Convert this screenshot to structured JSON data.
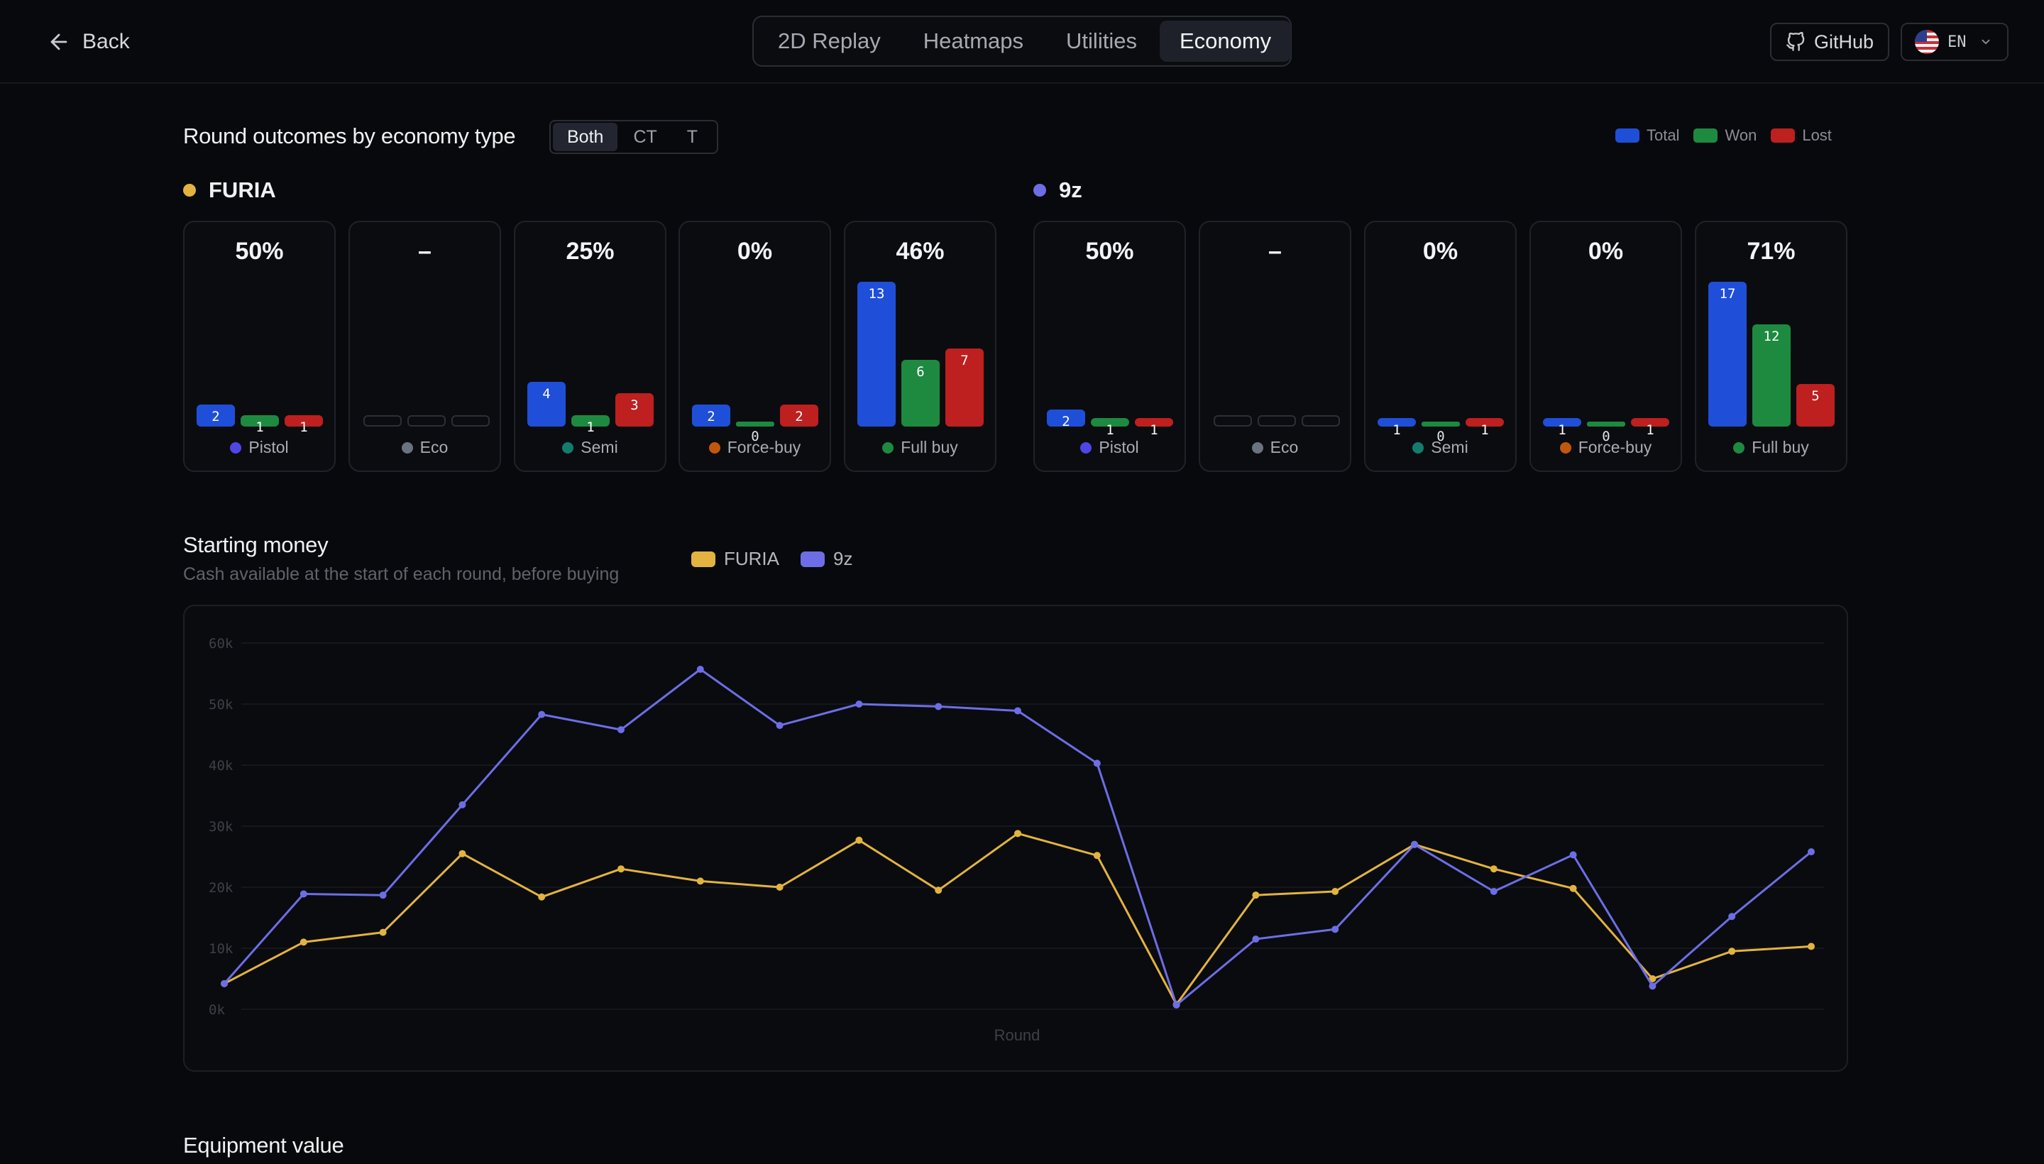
{
  "header": {
    "back_label": "Back",
    "tabs": [
      {
        "label": "2D Replay",
        "active": false
      },
      {
        "label": "Heatmaps",
        "active": false
      },
      {
        "label": "Utilities",
        "active": false
      },
      {
        "label": "Economy",
        "active": true
      }
    ],
    "github_label": "GitHub",
    "lang_label": "EN"
  },
  "outcomes": {
    "title": "Round outcomes by economy type",
    "side_options": [
      "Both",
      "CT",
      "T"
    ],
    "side_selected": "Both",
    "legend": [
      {
        "label": "Total",
        "color": "#1f4fd9"
      },
      {
        "label": "Won",
        "color": "#1d8a40"
      },
      {
        "label": "Lost",
        "color": "#be1f1f"
      }
    ],
    "teams": [
      {
        "name": "FURIA",
        "color": "#e2b33f",
        "types": [
          {
            "label": "Pistol",
            "dot": "#4f46e5",
            "pct": "50%",
            "total": 2,
            "won": 1,
            "lost": 1
          },
          {
            "label": "Eco",
            "dot": "#6b7280",
            "pct": "–",
            "total": 0,
            "won": 0,
            "lost": 0
          },
          {
            "label": "Semi",
            "dot": "#137c6f",
            "pct": "25%",
            "total": 4,
            "won": 1,
            "lost": 3
          },
          {
            "label": "Force-buy",
            "dot": "#c2570c",
            "pct": "0%",
            "total": 2,
            "won": 0,
            "lost": 2
          },
          {
            "label": "Full buy",
            "dot": "#1d8a40",
            "pct": "46%",
            "total": 13,
            "won": 6,
            "lost": 7
          }
        ]
      },
      {
        "name": "9z",
        "color": "#6d6ee6",
        "types": [
          {
            "label": "Pistol",
            "dot": "#4f46e5",
            "pct": "50%",
            "total": 2,
            "won": 1,
            "lost": 1
          },
          {
            "label": "Eco",
            "dot": "#6b7280",
            "pct": "–",
            "total": 0,
            "won": 0,
            "lost": 0
          },
          {
            "label": "Semi",
            "dot": "#137c6f",
            "pct": "0%",
            "total": 1,
            "won": 0,
            "lost": 1
          },
          {
            "label": "Force-buy",
            "dot": "#c2570c",
            "pct": "0%",
            "total": 1,
            "won": 0,
            "lost": 1
          },
          {
            "label": "Full buy",
            "dot": "#1d8a40",
            "pct": "71%",
            "total": 17,
            "won": 12,
            "lost": 5
          }
        ]
      }
    ]
  },
  "starting_money": {
    "title": "Starting money",
    "subtitle": "Cash available at the start of each round, before buying",
    "chart_data": {
      "type": "line",
      "xlabel": "Round",
      "ylabel": "",
      "ylim": [
        0,
        60000
      ],
      "yticks": [
        "0k",
        "10k",
        "20k",
        "30k",
        "40k",
        "50k",
        "60k"
      ],
      "grid": true,
      "x": [
        1,
        2,
        3,
        4,
        5,
        6,
        7,
        8,
        9,
        10,
        11,
        12,
        13,
        14,
        15,
        16,
        17,
        18,
        19,
        20,
        21
      ],
      "series": [
        {
          "name": "FURIA",
          "color": "#e2b33f",
          "values": [
            4200,
            11000,
            12600,
            25500,
            18400,
            23000,
            21000,
            20000,
            27700,
            19500,
            28800,
            25200,
            800,
            18700,
            19300,
            27000,
            23000,
            19800,
            5000,
            9500,
            10300
          ]
        },
        {
          "name": "9z",
          "color": "#6d6ee6",
          "values": [
            4200,
            18900,
            18700,
            33500,
            48300,
            45800,
            55700,
            46500,
            50000,
            49600,
            48900,
            40300,
            700,
            11500,
            13100,
            27000,
            19300,
            25300,
            3800,
            15200,
            25800
          ]
        }
      ]
    }
  },
  "equipment": {
    "title": "Equipment value"
  }
}
